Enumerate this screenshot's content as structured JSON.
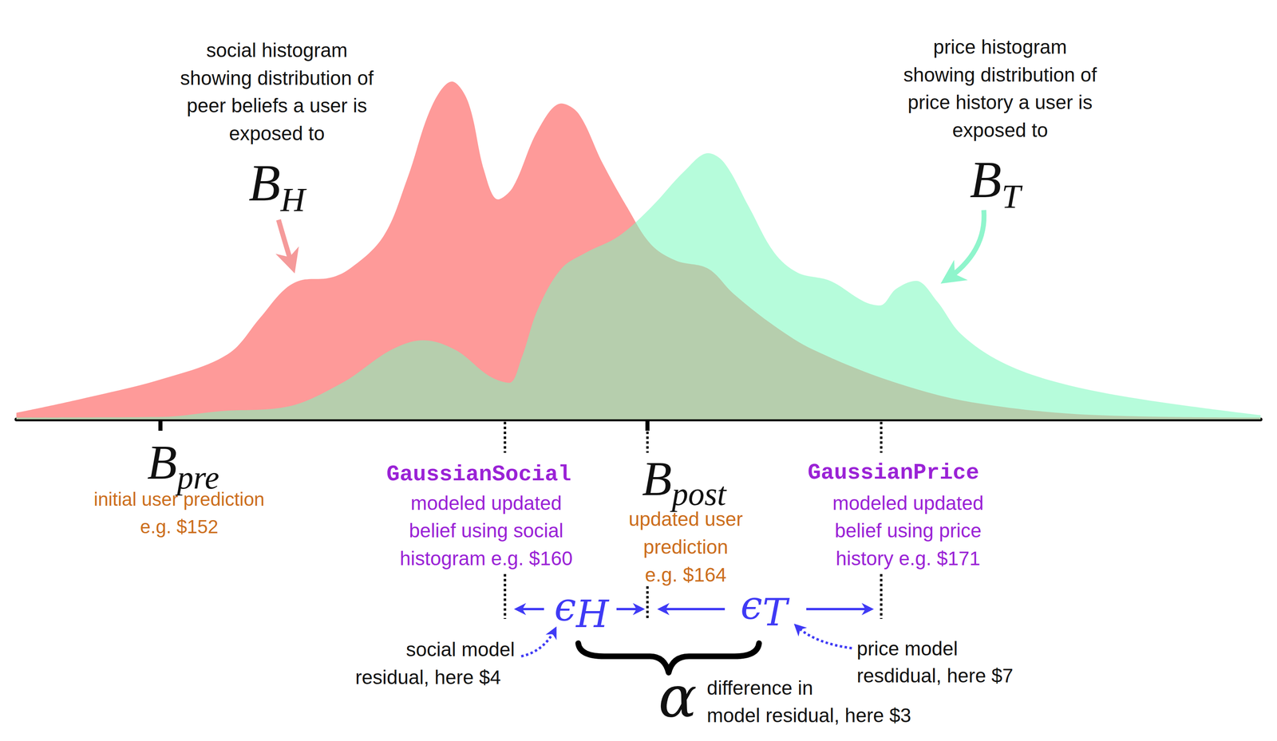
{
  "chart_data": {
    "type": "area",
    "xlim": [
      0,
      100
    ],
    "ylim": [
      0,
      100
    ],
    "grid": false,
    "tick_labels": false,
    "series": [
      {
        "color": "#fe9a99",
        "x": [
          0,
          5.2,
          11.8,
          17.0,
          19.6,
          21.6,
          23.2,
          24.9,
          26.8,
          29.5,
          31.4,
          33.4,
          35.0,
          36.3,
          37.6,
          38.7,
          39.9,
          41.9,
          43.8,
          45.2,
          47.1,
          49.1,
          51.0,
          53.0,
          55.6,
          57.6,
          60.9,
          64.1,
          70.7,
          77.2,
          87.0,
          100
        ],
        "values": [
          1.9,
          6.0,
          12.0,
          19.3,
          30.1,
          38.6,
          41.4,
          41.7,
          44.6,
          54.2,
          71.1,
          92.8,
          100,
          94.0,
          73.5,
          65.1,
          68.7,
          85.5,
          93.5,
          90.4,
          75.9,
          62.7,
          51.8,
          47.0,
          44.6,
          37.3,
          27.7,
          20.5,
          10.8,
          4.8,
          1.2,
          0.5
        ]
      },
      {
        "color": "#7afabe",
        "x": [
          0,
          11.8,
          16.4,
          21.6,
          26.2,
          30.1,
          32.7,
          35.3,
          38.0,
          39.6,
          40.6,
          41.9,
          43.8,
          45.8,
          48.4,
          51.0,
          53.7,
          55.6,
          56.9,
          58.9,
          60.9,
          62.8,
          65.4,
          68.1,
          69.4,
          70.7,
          72.3,
          74.0,
          75.9,
          79.2,
          83.8,
          90.3,
          100
        ],
        "values": [
          0.5,
          0.7,
          2.4,
          3.6,
          10.8,
          20.5,
          23.4,
          20.5,
          12.8,
          10.8,
          18.1,
          32.5,
          44.6,
          49.4,
          54.2,
          62.7,
          73.5,
          78.8,
          75.9,
          62.7,
          49.4,
          43.4,
          41.0,
          34.9,
          33.7,
          38.6,
          41.0,
          34.9,
          25.3,
          16.9,
          10.8,
          6.0,
          1.2
        ]
      }
    ],
    "annotations": {
      "social_histogram": {
        "lines": [
          "social histogram",
          "showing distribution of",
          "peer beliefs a user is",
          "exposed to"
        ],
        "symbol": "B",
        "subscript": "H"
      },
      "price_histogram": {
        "lines": [
          "price histogram",
          "showing distribution of",
          "price history a user is",
          "exposed to"
        ],
        "symbol": "B",
        "subscript": "T"
      },
      "b_pre": {
        "symbol": "B",
        "subscript": "pre",
        "lines": [
          "initial user prediction",
          "e.g. $152"
        ]
      },
      "gaussian_social": {
        "title": "GaussianSocial",
        "lines": [
          "modeled updated",
          "belief using social",
          "histogram e.g. $160"
        ]
      },
      "b_post": {
        "symbol": "B",
        "subscript": "post",
        "lines": [
          "updated user",
          "prediction",
          "e.g. $164"
        ]
      },
      "gaussian_price": {
        "title": "GaussianPrice",
        "lines": [
          "modeled updated",
          "belief using price",
          "history e.g. $171"
        ]
      },
      "epsilon_h": {
        "symbol": "ϵ",
        "subscript": "H",
        "lines": [
          "social model",
          "residual, here $4"
        ]
      },
      "epsilon_t": {
        "symbol": "ϵ",
        "subscript": "T",
        "lines": [
          "price model",
          "resdidual, here $7"
        ]
      },
      "alpha": {
        "symbol": "α",
        "lines": [
          "difference in",
          "model residual, here $3"
        ]
      }
    }
  }
}
